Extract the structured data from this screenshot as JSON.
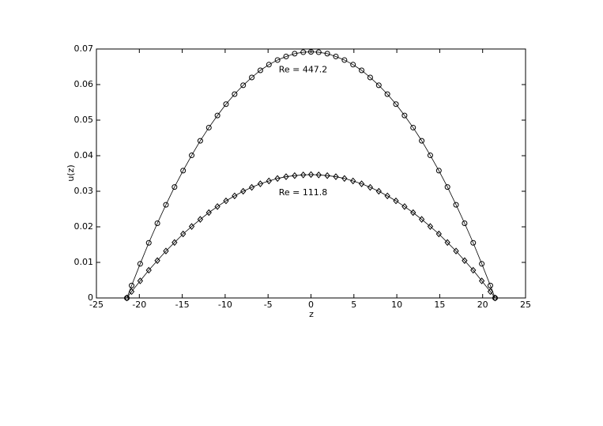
{
  "chart_data": {
    "type": "line",
    "x_label": "z",
    "y_label": "u(z)",
    "x": [
      -21.45,
      -20.9,
      -19.9,
      -18.9,
      -17.9,
      -16.9,
      -15.9,
      -14.9,
      -13.9,
      -12.9,
      -11.9,
      -10.9,
      -9.9,
      -8.9,
      -7.9,
      -6.9,
      -5.9,
      -4.9,
      -3.9,
      -2.9,
      -1.9,
      -0.9,
      0,
      0.9,
      1.9,
      2.9,
      3.9,
      4.9,
      5.9,
      6.9,
      7.9,
      8.9,
      9.9,
      10.9,
      11.9,
      12.9,
      13.9,
      14.9,
      15.9,
      16.9,
      17.9,
      18.9,
      19.9,
      20.9,
      21.45
    ],
    "series": [
      {
        "name": "Re = 447.2",
        "color": "#000000",
        "marker": "circle",
        "values": [
          0,
          0.0035,
          0.0096,
          0.0155,
          0.021,
          0.0262,
          0.0312,
          0.0358,
          0.0401,
          0.0442,
          0.0479,
          0.0513,
          0.0545,
          0.0573,
          0.0598,
          0.062,
          0.064,
          0.0656,
          0.0669,
          0.0679,
          0.0687,
          0.0691,
          0.0692,
          0.0691,
          0.0687,
          0.0679,
          0.0669,
          0.0656,
          0.064,
          0.062,
          0.0598,
          0.0573,
          0.0545,
          0.0513,
          0.0479,
          0.0442,
          0.0401,
          0.0358,
          0.0312,
          0.0262,
          0.021,
          0.0155,
          0.0096,
          0.0035,
          0
        ]
      },
      {
        "name": "Re = 111.8",
        "color": "#000000",
        "marker": "diamond",
        "values": [
          0,
          0.0018,
          0.0048,
          0.0078,
          0.0105,
          0.0132,
          0.0156,
          0.018,
          0.0201,
          0.0221,
          0.024,
          0.0257,
          0.0273,
          0.0287,
          0.03,
          0.0311,
          0.0321,
          0.0329,
          0.0336,
          0.0341,
          0.0344,
          0.0346,
          0.0347,
          0.0346,
          0.0344,
          0.0341,
          0.0336,
          0.0329,
          0.0321,
          0.0311,
          0.03,
          0.0287,
          0.0273,
          0.0257,
          0.024,
          0.0221,
          0.0201,
          0.018,
          0.0156,
          0.0132,
          0.0105,
          0.0078,
          0.0048,
          0.0018,
          0
        ]
      }
    ],
    "xlim": [
      -25,
      25
    ],
    "xticks": [
      -25,
      -20,
      -15,
      -10,
      -5,
      0,
      5,
      10,
      15,
      20,
      25
    ],
    "ylim": [
      0,
      0.07
    ],
    "yticks": [
      0,
      0.01,
      0.02,
      0.03,
      0.04,
      0.05,
      0.06,
      0.07
    ],
    "grid": false
  }
}
